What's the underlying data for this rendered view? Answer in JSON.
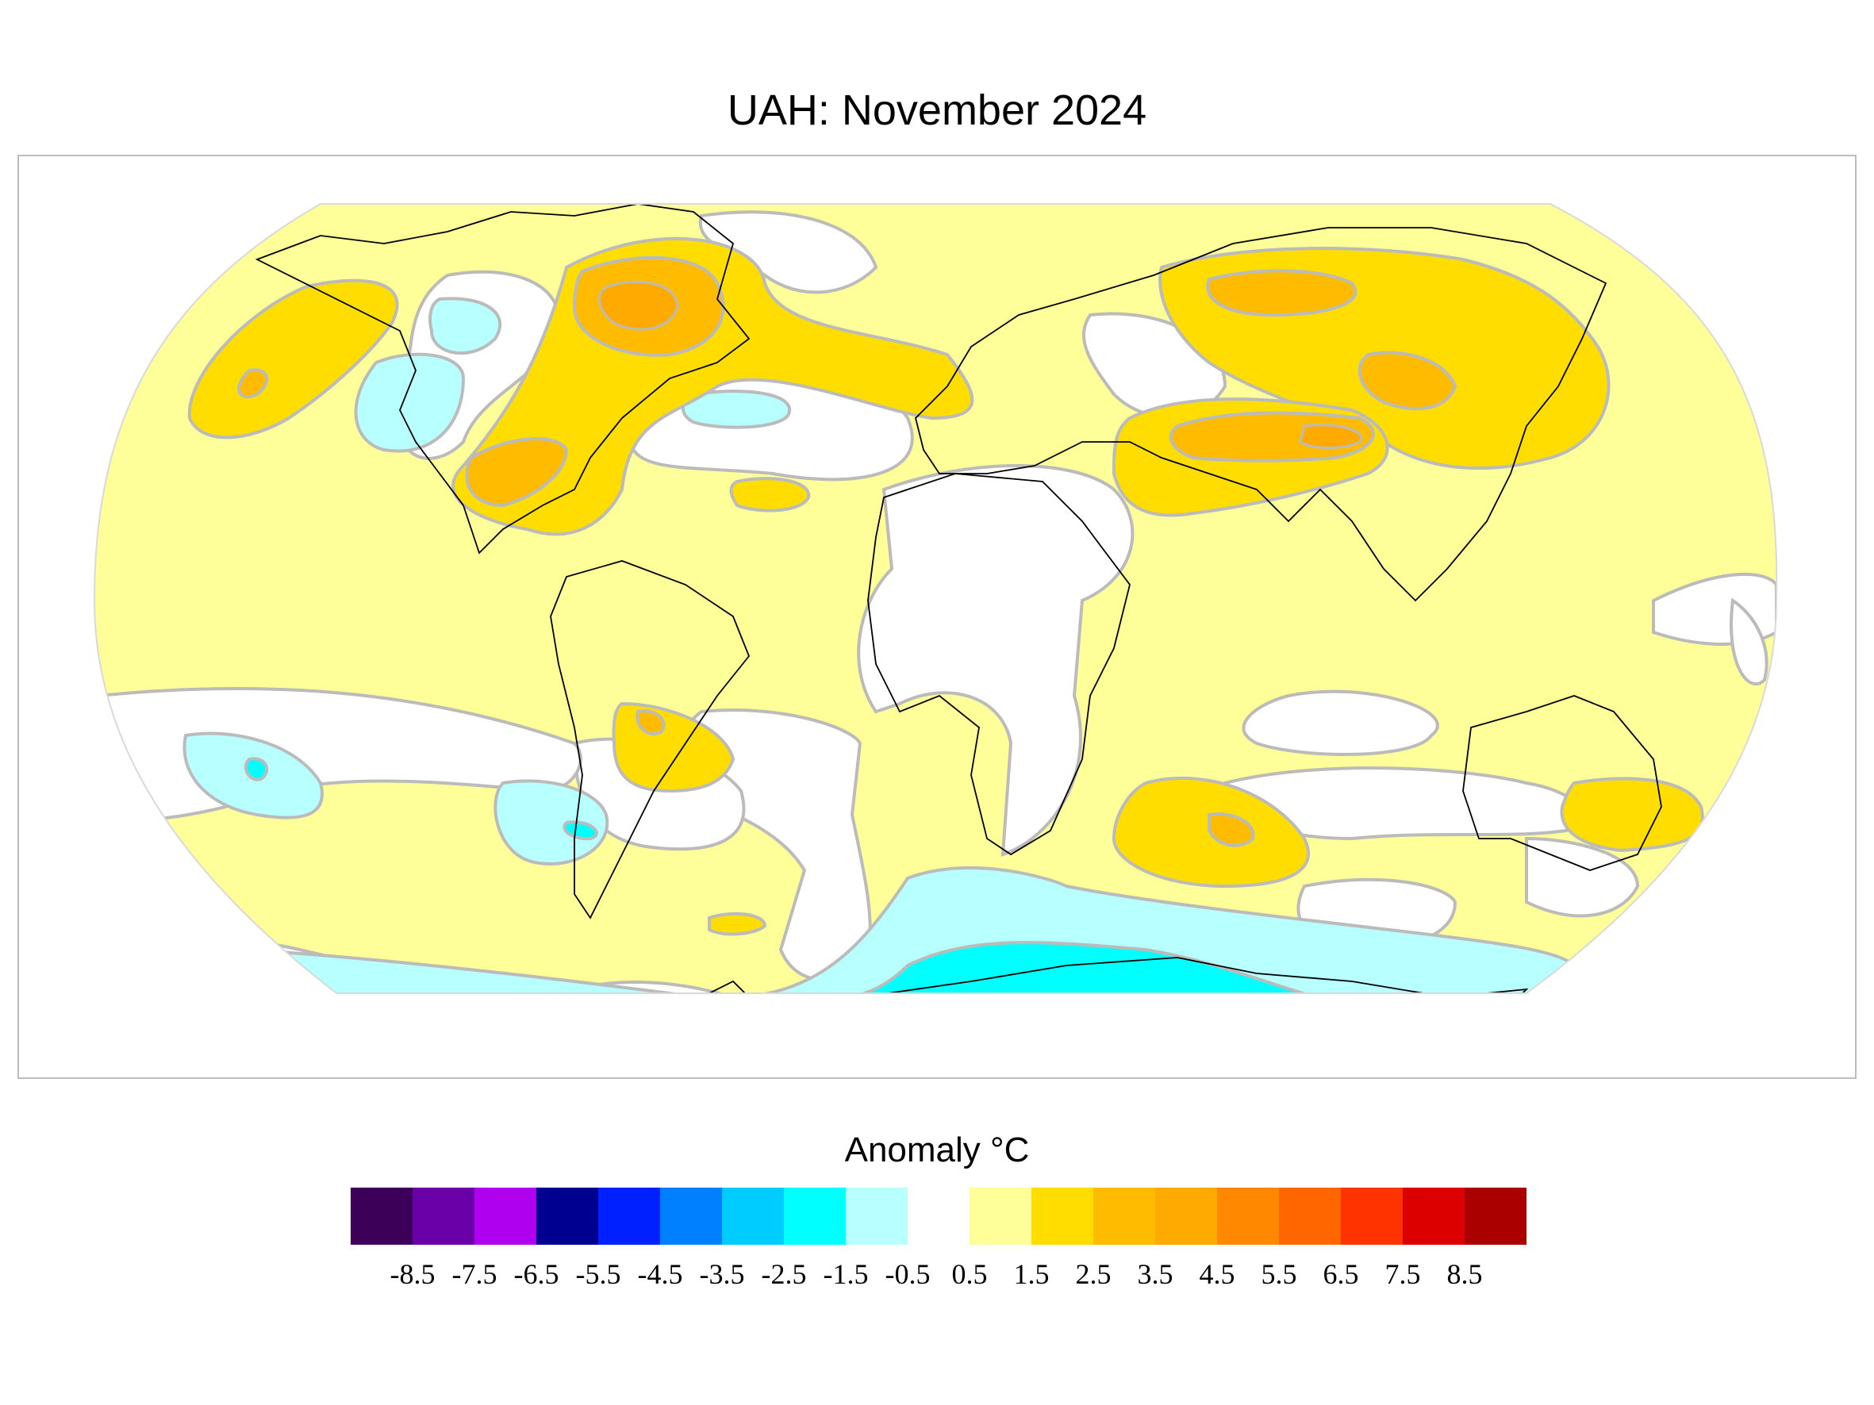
{
  "title": "UAH: November 2024",
  "legend": {
    "title": "Anomaly °C",
    "tick_labels": [
      "-8.5",
      "-7.5",
      "-6.5",
      "-5.5",
      "-4.5",
      "-3.5",
      "-2.5",
      "-1.5",
      "-0.5",
      "0.5",
      "1.5",
      "2.5",
      "3.5",
      "4.5",
      "5.5",
      "6.5",
      "7.5",
      "8.5"
    ],
    "bin_colors": [
      "#3d0059",
      "#6a00a8",
      "#b000f0",
      "#000090",
      "#0020ff",
      "#0080ff",
      "#00ccff",
      "#00ffff",
      "#b8ffff",
      "#ffffff",
      "#ffff99",
      "#ffdd00",
      "#ffbb00",
      "#ffaa00",
      "#ff8800",
      "#ff6600",
      "#ff3300",
      "#dd0000",
      "#aa0000"
    ]
  },
  "colors": {
    "warm_1": "#ffff99",
    "warm_2": "#ffdd00",
    "warm_3": "#ffbb00",
    "warm_4": "#ffaa00",
    "cool_1": "#b8ffff",
    "cool_2": "#00ffff",
    "cool_3": "#00ccff",
    "contour": "#bbbbbb",
    "border": "#000000"
  }
}
